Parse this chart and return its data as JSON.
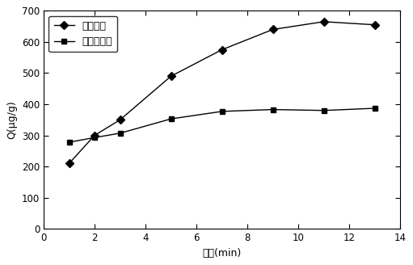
{
  "series1_label": "印迹材料",
  "series2_label": "非印迹材料",
  "series1_x": [
    1,
    2,
    3,
    5,
    7,
    9,
    11,
    13
  ],
  "series1_y": [
    210,
    300,
    350,
    490,
    575,
    640,
    665,
    655
  ],
  "series2_x": [
    1,
    2,
    3,
    5,
    7,
    9,
    11,
    13
  ],
  "series2_y": [
    278,
    293,
    307,
    353,
    377,
    383,
    380,
    387
  ],
  "xlabel": "时间(min)",
  "ylabel": "Q(μg/g)",
  "xlim": [
    0,
    14
  ],
  "ylim": [
    0,
    700
  ],
  "xticks": [
    0,
    2,
    4,
    6,
    8,
    10,
    12,
    14
  ],
  "yticks": [
    0,
    100,
    200,
    300,
    400,
    500,
    600,
    700
  ],
  "line_color": "#000000",
  "marker1": "D",
  "marker2": "s",
  "bg_color": "#ffffff",
  "plot_bg": "#ffffff"
}
